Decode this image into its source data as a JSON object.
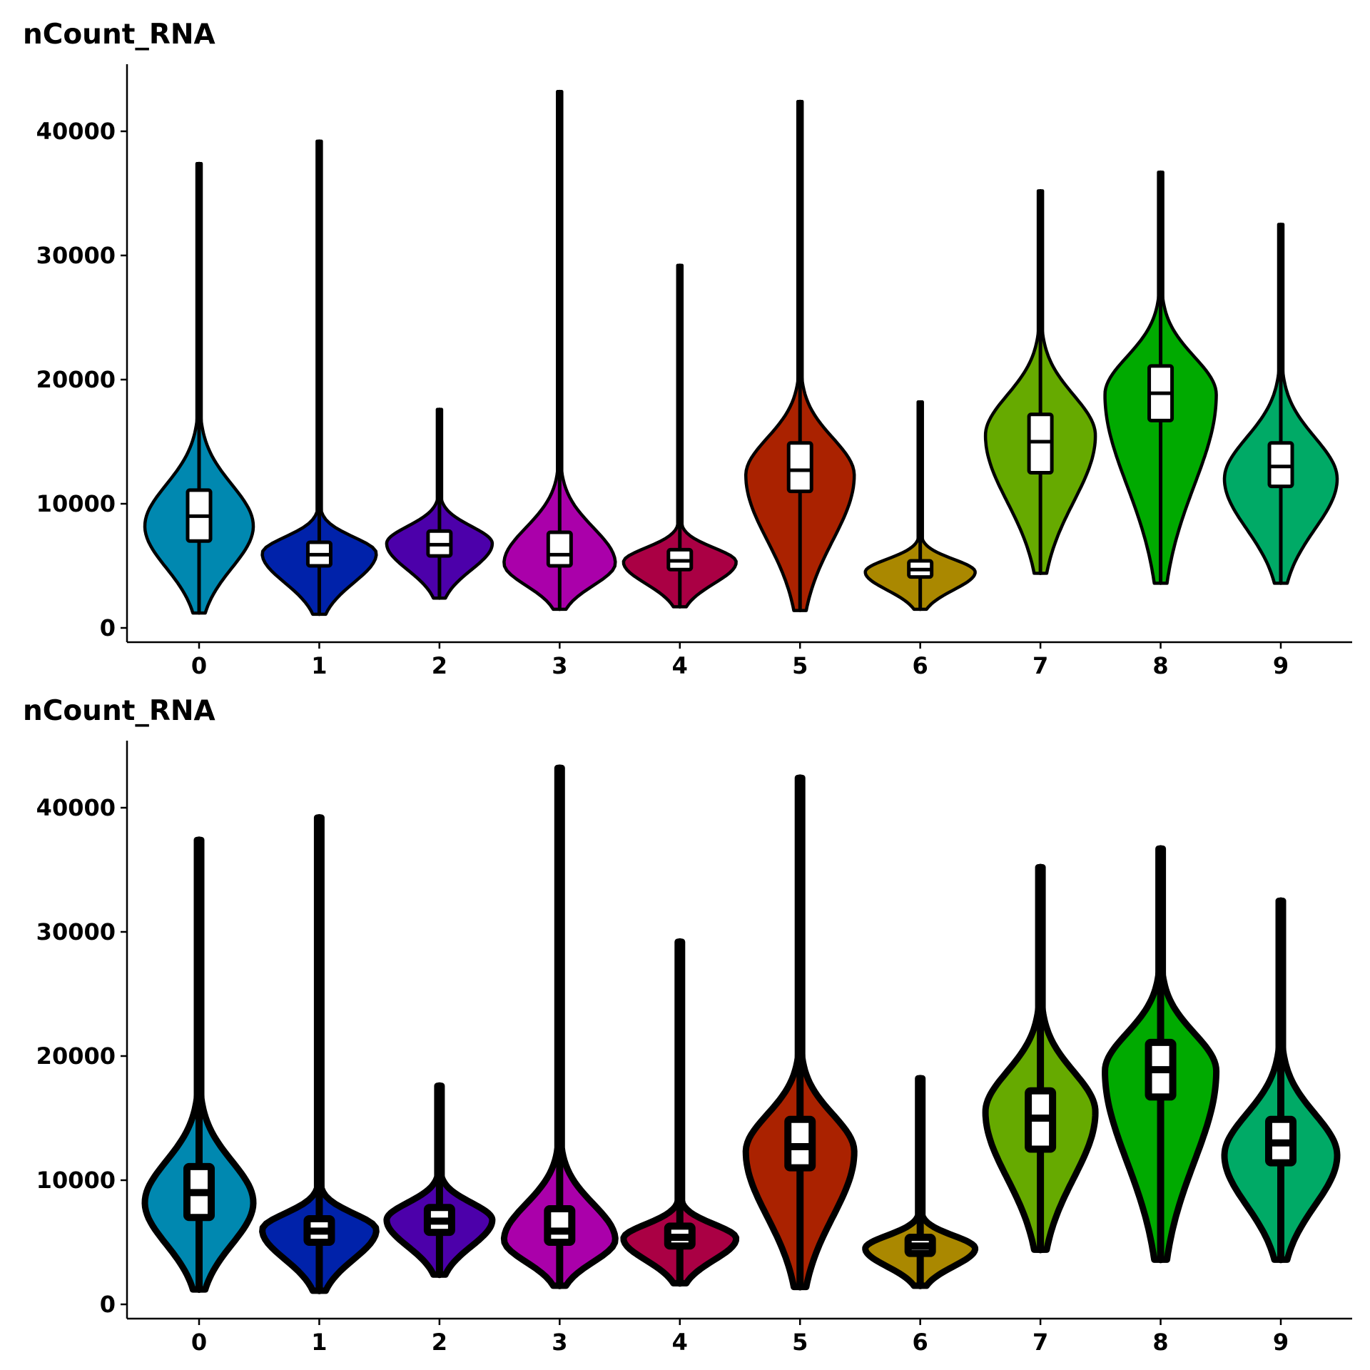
{
  "colors": [
    "#0088B0",
    "#0022AA",
    "#4C00AA",
    "#AA00AA",
    "#AA0044",
    "#AA2200",
    "#AA8800",
    "#66AA00",
    "#00AA00",
    "#00AA66"
  ],
  "chart_data": [
    {
      "type": "violin",
      "title": "nCount_RNA",
      "xlabel": "",
      "ylabel": "",
      "ylim": [
        0,
        45000
      ],
      "yticks": [
        0,
        10000,
        20000,
        30000,
        40000
      ],
      "ytick_labels": [
        "0",
        "10000",
        "20000",
        "30000",
        "40000"
      ],
      "grid": false,
      "legend": "none",
      "categories": [
        "0",
        "1",
        "2",
        "3",
        "4",
        "5",
        "6",
        "7",
        "8",
        "9"
      ],
      "series": [
        {
          "category": "0",
          "min": 1200,
          "max": 37400,
          "q1": 7000,
          "median": 9000,
          "q3": 11100,
          "mode": 8200
        },
        {
          "category": "1",
          "min": 1100,
          "max": 39200,
          "q1": 5000,
          "median": 5900,
          "q3": 6900,
          "mode": 6000
        },
        {
          "category": "2",
          "min": 2400,
          "max": 17600,
          "q1": 5800,
          "median": 6700,
          "q3": 7800,
          "mode": 6800
        },
        {
          "category": "3",
          "min": 1500,
          "max": 43200,
          "q1": 5000,
          "median": 5900,
          "q3": 7700,
          "mode": 5200
        },
        {
          "category": "4",
          "min": 1700,
          "max": 29200,
          "q1": 4700,
          "median": 5400,
          "q3": 6300,
          "mode": 5300
        },
        {
          "category": "5",
          "min": 1400,
          "max": 42400,
          "q1": 11000,
          "median": 12700,
          "q3": 14900,
          "mode": 12300
        },
        {
          "category": "6",
          "min": 1500,
          "max": 18200,
          "q1": 4100,
          "median": 4700,
          "q3": 5400,
          "mode": 4500
        },
        {
          "category": "7",
          "min": 4400,
          "max": 35200,
          "q1": 12500,
          "median": 15000,
          "q3": 17200,
          "mode": 15500
        },
        {
          "category": "8",
          "min": 3600,
          "max": 36700,
          "q1": 16700,
          "median": 18900,
          "q3": 21100,
          "mode": 18800
        },
        {
          "category": "9",
          "min": 3600,
          "max": 32500,
          "q1": 11400,
          "median": 13000,
          "q3": 14900,
          "mode": 12000
        }
      ]
    },
    {
      "type": "violin",
      "title": "nCount_RNA",
      "xlabel": "",
      "ylabel": "",
      "ylim": [
        0,
        45000
      ],
      "yticks": [
        0,
        10000,
        20000,
        30000,
        40000
      ],
      "ytick_labels": [
        "0",
        "10000",
        "20000",
        "30000",
        "40000"
      ],
      "grid": false,
      "legend": "none",
      "categories": [
        "0",
        "1",
        "2",
        "3",
        "4",
        "5",
        "6",
        "7",
        "8",
        "9"
      ],
      "series": [
        {
          "category": "0",
          "min": 1200,
          "max": 37400,
          "q1": 7000,
          "median": 9000,
          "q3": 11100,
          "mode": 8200
        },
        {
          "category": "1",
          "min": 1100,
          "max": 39200,
          "q1": 5000,
          "median": 5900,
          "q3": 6900,
          "mode": 6000
        },
        {
          "category": "2",
          "min": 2400,
          "max": 17600,
          "q1": 5800,
          "median": 6700,
          "q3": 7800,
          "mode": 6800
        },
        {
          "category": "3",
          "min": 1500,
          "max": 43200,
          "q1": 5000,
          "median": 5900,
          "q3": 7700,
          "mode": 5200
        },
        {
          "category": "4",
          "min": 1700,
          "max": 29200,
          "q1": 4700,
          "median": 5400,
          "q3": 6300,
          "mode": 5300
        },
        {
          "category": "5",
          "min": 1400,
          "max": 42400,
          "q1": 11000,
          "median": 12700,
          "q3": 14900,
          "mode": 12300
        },
        {
          "category": "6",
          "min": 1500,
          "max": 18200,
          "q1": 4100,
          "median": 4700,
          "q3": 5400,
          "mode": 4500
        },
        {
          "category": "7",
          "min": 4400,
          "max": 35200,
          "q1": 12500,
          "median": 15000,
          "q3": 17200,
          "mode": 15500
        },
        {
          "category": "8",
          "min": 3600,
          "max": 36700,
          "q1": 16700,
          "median": 18900,
          "q3": 21100,
          "mode": 18800
        },
        {
          "category": "9",
          "min": 3600,
          "max": 32500,
          "q1": 11400,
          "median": 13000,
          "q3": 14900,
          "mode": 12000
        }
      ]
    }
  ]
}
